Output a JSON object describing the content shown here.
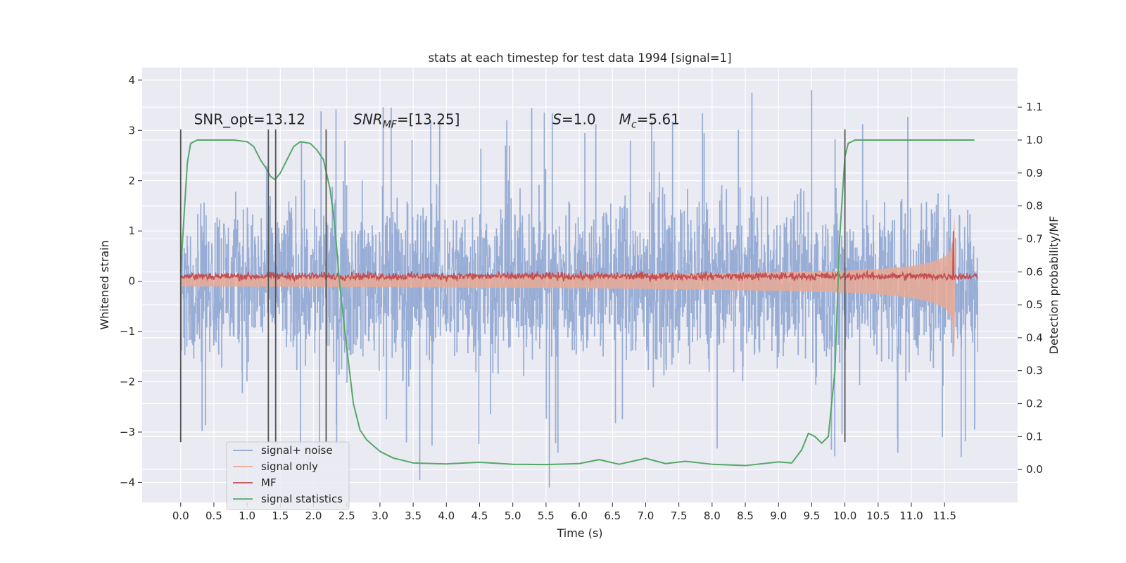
{
  "chart_data": {
    "type": "line",
    "title": "stats at each timestep for test data 1994 [signal=1]",
    "xlabel": "Time (s)",
    "ylabel": "Whitened strain",
    "y2label": "Detection probability/MF",
    "xlim": [
      -0.58,
      12.6
    ],
    "ylim": [
      -4.4,
      4.25
    ],
    "y2lim": [
      -0.1,
      1.22
    ],
    "xticks": [
      0.0,
      0.5,
      1.0,
      1.5,
      2.0,
      2.5,
      3.0,
      3.5,
      4.0,
      4.5,
      5.0,
      5.5,
      6.0,
      6.5,
      7.0,
      7.5,
      8.0,
      8.5,
      9.0,
      9.5,
      10.0,
      10.5,
      11.0,
      11.5
    ],
    "xtick_labels": [
      "0.0",
      "0.5",
      "1.0",
      "1.5",
      "2.0",
      "2.5",
      "3.0",
      "3.5",
      "4.0",
      "4.5",
      "5.0",
      "5.5",
      "6.0",
      "6.5",
      "7.0",
      "7.5",
      "8.0",
      "8.5",
      "9.0",
      "9.5",
      "10.0",
      "10.5",
      "11.0",
      "11.5"
    ],
    "yticks": [
      -4,
      -3,
      -2,
      -1,
      0,
      1,
      2,
      3,
      4
    ],
    "ytick_labels": [
      "−4",
      "−3",
      "−2",
      "−1",
      "0",
      "1",
      "2",
      "3",
      "4"
    ],
    "y2ticks": [
      0.0,
      0.1,
      0.2,
      0.3,
      0.4,
      0.5,
      0.6,
      0.7,
      0.8,
      0.9,
      1.0,
      1.1
    ],
    "y2tick_labels": [
      "0.0",
      "0.1",
      "0.2",
      "0.3",
      "0.4",
      "0.5",
      "0.6",
      "0.7",
      "0.8",
      "0.9",
      "1.0",
      "1.1"
    ],
    "grid": true,
    "legend_position": "bottom-left",
    "annotations": [
      {
        "text": "SNR_opt=13.12",
        "x": 0.2,
        "y": 3.12
      },
      {
        "text": "SNR_MF=[13.25]",
        "x": 2.6,
        "y": 3.12
      },
      {
        "text": "S=1.0",
        "x": 5.6,
        "y": 3.12
      },
      {
        "text": "M_c=5.61",
        "x": 6.6,
        "y": 3.12
      }
    ],
    "vertical_lines_x": [
      0.0,
      1.32,
      1.43,
      2.19,
      10.0
    ],
    "vertical_lines_yrange": [
      -3.2,
      3.02
    ],
    "series": [
      {
        "name": "signal+ noise",
        "color": "#8fa6d2",
        "axis": "left",
        "x_range": [
          0.0,
          12.0
        ],
        "noise_amplitude": 2.5,
        "peak_extremes": [
          3.8,
          -4.1
        ]
      },
      {
        "name": "signal only",
        "color": "#e8a994",
        "axis": "left",
        "envelope": {
          "x": [
            0.0,
            6.0,
            8.0,
            9.0,
            10.0,
            10.5,
            11.0,
            11.3,
            11.5,
            11.6,
            11.62,
            11.65,
            11.66
          ],
          "half_width": [
            0.02,
            0.05,
            0.08,
            0.1,
            0.13,
            0.16,
            0.22,
            0.3,
            0.4,
            0.55,
            0.7,
            1.25,
            0.0
          ]
        }
      },
      {
        "name": "MF",
        "color": "#c44e52",
        "axis": "left",
        "x_range": [
          0.0,
          12.0
        ],
        "center": 0.1,
        "noise_amplitude": 0.1,
        "spike": {
          "x": 11.63,
          "y": 1.0
        }
      },
      {
        "name": "signal statistics",
        "color": "#55a868",
        "axis": "right",
        "x": [
          0.0,
          0.06,
          0.1,
          0.15,
          0.25,
          0.4,
          0.6,
          0.8,
          1.0,
          1.1,
          1.2,
          1.3,
          1.35,
          1.42,
          1.5,
          1.6,
          1.7,
          1.8,
          1.95,
          2.05,
          2.15,
          2.25,
          2.32,
          2.4,
          2.5,
          2.6,
          2.7,
          2.8,
          3.0,
          3.2,
          3.5,
          4.0,
          4.5,
          5.0,
          5.5,
          6.0,
          6.3,
          6.6,
          7.0,
          7.3,
          7.6,
          8.0,
          8.5,
          9.0,
          9.2,
          9.35,
          9.45,
          9.55,
          9.65,
          9.75,
          9.85,
          9.92,
          10.0,
          10.05,
          10.15,
          10.3,
          10.6,
          11.0,
          11.5,
          11.95
        ],
        "y": [
          0.6,
          0.8,
          0.93,
          0.99,
          1.0,
          1.0,
          1.0,
          1.0,
          0.995,
          0.98,
          0.94,
          0.91,
          0.89,
          0.88,
          0.9,
          0.94,
          0.98,
          0.995,
          0.99,
          0.97,
          0.94,
          0.85,
          0.74,
          0.55,
          0.37,
          0.2,
          0.12,
          0.09,
          0.055,
          0.035,
          0.02,
          0.017,
          0.022,
          0.016,
          0.015,
          0.018,
          0.03,
          0.016,
          0.034,
          0.018,
          0.025,
          0.016,
          0.012,
          0.023,
          0.02,
          0.06,
          0.11,
          0.1,
          0.08,
          0.1,
          0.3,
          0.7,
          0.95,
          0.99,
          1.0,
          1.0,
          1.0,
          1.0,
          1.0,
          1.0
        ]
      }
    ]
  }
}
